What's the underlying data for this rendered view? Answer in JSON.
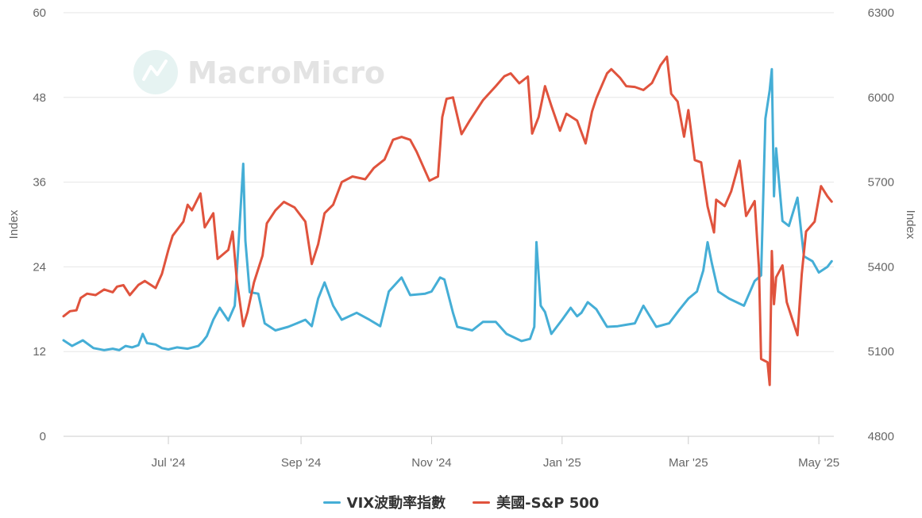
{
  "watermark": "MacroMicro",
  "colors": {
    "vix": "#45aed6",
    "sp500": "#e0533d",
    "grid": "#e6e6e6",
    "text": "#666666"
  },
  "chart_data": {
    "type": "line",
    "left_axis": {
      "label": "Index",
      "ticks": [
        "0",
        "12",
        "24",
        "36",
        "48",
        "60"
      ],
      "ylim": [
        0,
        60
      ]
    },
    "right_axis": {
      "label": "Index",
      "ticks": [
        "4800",
        "5100",
        "5400",
        "5700",
        "6000",
        "6300"
      ],
      "ylim": [
        4800,
        6300
      ]
    },
    "x_ticks": [
      {
        "label": "Jul '24",
        "date": "2024-07-01"
      },
      {
        "label": "Sep '24",
        "date": "2024-09-01"
      },
      {
        "label": "Nov '24",
        "date": "2024-11-01"
      },
      {
        "label": "Jan '25",
        "date": "2025-01-01"
      },
      {
        "label": "Mar '25",
        "date": "2025-03-01"
      },
      {
        "label": "May '25",
        "date": "2025-05-01"
      }
    ],
    "xlim": [
      "2024-05-13",
      "2025-05-08"
    ],
    "grid": true,
    "legend": "bottom",
    "series": [
      {
        "name": "VIX波動率指數",
        "axis": "left",
        "points": [
          [
            "2024-05-13",
            13.6
          ],
          [
            "2024-05-17",
            12.8
          ],
          [
            "2024-05-22",
            13.6
          ],
          [
            "2024-05-27",
            12.5
          ],
          [
            "2024-06-01",
            12.2
          ],
          [
            "2024-06-05",
            12.4
          ],
          [
            "2024-06-08",
            12.2
          ],
          [
            "2024-06-11",
            12.8
          ],
          [
            "2024-06-14",
            12.6
          ],
          [
            "2024-06-17",
            12.9
          ],
          [
            "2024-06-19",
            14.5
          ],
          [
            "2024-06-21",
            13.2
          ],
          [
            "2024-06-25",
            13.0
          ],
          [
            "2024-06-28",
            12.5
          ],
          [
            "2024-07-01",
            12.3
          ],
          [
            "2024-07-05",
            12.6
          ],
          [
            "2024-07-10",
            12.4
          ],
          [
            "2024-07-15",
            12.8
          ],
          [
            "2024-07-17",
            13.4
          ],
          [
            "2024-07-19",
            14.2
          ],
          [
            "2024-07-22",
            16.5
          ],
          [
            "2024-07-25",
            18.2
          ],
          [
            "2024-07-29",
            16.4
          ],
          [
            "2024-08-01",
            18.5
          ],
          [
            "2024-08-02",
            23.4
          ],
          [
            "2024-08-05",
            38.6
          ],
          [
            "2024-08-06",
            27.7
          ],
          [
            "2024-08-08",
            20.4
          ],
          [
            "2024-08-12",
            20.2
          ],
          [
            "2024-08-15",
            16.0
          ],
          [
            "2024-08-20",
            15.0
          ],
          [
            "2024-08-26",
            15.5
          ],
          [
            "2024-08-30",
            16.0
          ],
          [
            "2024-09-03",
            16.5
          ],
          [
            "2024-09-06",
            15.6
          ],
          [
            "2024-09-09",
            19.5
          ],
          [
            "2024-09-12",
            21.8
          ],
          [
            "2024-09-16",
            18.5
          ],
          [
            "2024-09-20",
            16.5
          ],
          [
            "2024-09-27",
            17.5
          ],
          [
            "2024-10-03",
            16.5
          ],
          [
            "2024-10-08",
            15.6
          ],
          [
            "2024-10-12",
            20.5
          ],
          [
            "2024-10-18",
            22.5
          ],
          [
            "2024-10-22",
            20.0
          ],
          [
            "2024-10-29",
            20.2
          ],
          [
            "2024-11-01",
            20.5
          ],
          [
            "2024-11-05",
            22.5
          ],
          [
            "2024-11-07",
            22.2
          ],
          [
            "2024-11-11",
            17.5
          ],
          [
            "2024-11-13",
            15.5
          ],
          [
            "2024-11-20",
            15.0
          ],
          [
            "2024-11-25",
            16.2
          ],
          [
            "2024-12-01",
            16.2
          ],
          [
            "2024-12-06",
            14.5
          ],
          [
            "2024-12-13",
            13.5
          ],
          [
            "2024-12-17",
            13.8
          ],
          [
            "2024-12-19",
            15.5
          ],
          [
            "2024-12-20",
            27.5
          ],
          [
            "2024-12-22",
            18.5
          ],
          [
            "2024-12-24",
            17.6
          ],
          [
            "2024-12-27",
            14.5
          ],
          [
            "2025-01-01",
            16.5
          ],
          [
            "2025-01-05",
            18.2
          ],
          [
            "2025-01-08",
            17.0
          ],
          [
            "2025-01-10",
            17.5
          ],
          [
            "2025-01-13",
            19.0
          ],
          [
            "2025-01-17",
            18.0
          ],
          [
            "2025-01-22",
            15.5
          ],
          [
            "2025-01-27",
            15.6
          ],
          [
            "2025-01-31",
            15.8
          ],
          [
            "2025-02-04",
            16.0
          ],
          [
            "2025-02-08",
            18.5
          ],
          [
            "2025-02-14",
            15.5
          ],
          [
            "2025-02-20",
            16.0
          ],
          [
            "2025-02-25",
            18.0
          ],
          [
            "2025-03-01",
            19.5
          ],
          [
            "2025-03-05",
            20.5
          ],
          [
            "2025-03-08",
            23.5
          ],
          [
            "2025-03-10",
            27.5
          ],
          [
            "2025-03-12",
            24.5
          ],
          [
            "2025-03-15",
            20.5
          ],
          [
            "2025-03-20",
            19.5
          ],
          [
            "2025-03-27",
            18.5
          ],
          [
            "2025-04-01",
            22.0
          ],
          [
            "2025-04-04",
            22.8
          ],
          [
            "2025-04-06",
            45.0
          ],
          [
            "2025-04-08",
            49.0
          ],
          [
            "2025-04-09",
            52.0
          ],
          [
            "2025-04-10",
            34.0
          ],
          [
            "2025-04-11",
            40.8
          ],
          [
            "2025-04-14",
            30.5
          ],
          [
            "2025-04-17",
            29.8
          ],
          [
            "2025-04-21",
            33.8
          ],
          [
            "2025-04-24",
            25.5
          ],
          [
            "2025-04-28",
            24.8
          ],
          [
            "2025-05-01",
            23.2
          ],
          [
            "2025-05-05",
            24.0
          ],
          [
            "2025-05-07",
            24.8
          ]
        ]
      },
      {
        "name": "美國-S&P 500",
        "axis": "right",
        "points": [
          [
            "2024-05-13",
            5225
          ],
          [
            "2024-05-16",
            5243
          ],
          [
            "2024-05-19",
            5246
          ],
          [
            "2024-05-21",
            5290
          ],
          [
            "2024-05-24",
            5305
          ],
          [
            "2024-05-28",
            5300
          ],
          [
            "2024-06-01",
            5320
          ],
          [
            "2024-06-05",
            5310
          ],
          [
            "2024-06-07",
            5330
          ],
          [
            "2024-06-10",
            5335
          ],
          [
            "2024-06-13",
            5300
          ],
          [
            "2024-06-17",
            5336
          ],
          [
            "2024-06-20",
            5350
          ],
          [
            "2024-06-25",
            5325
          ],
          [
            "2024-06-28",
            5375
          ],
          [
            "2024-07-01",
            5460
          ],
          [
            "2024-07-03",
            5510
          ],
          [
            "2024-07-08",
            5560
          ],
          [
            "2024-07-10",
            5620
          ],
          [
            "2024-07-12",
            5600
          ],
          [
            "2024-07-16",
            5660
          ],
          [
            "2024-07-18",
            5540
          ],
          [
            "2024-07-22",
            5590
          ],
          [
            "2024-07-24",
            5428
          ],
          [
            "2024-07-29",
            5460
          ],
          [
            "2024-07-31",
            5525
          ],
          [
            "2024-08-02",
            5350
          ],
          [
            "2024-08-05",
            5190
          ],
          [
            "2024-08-07",
            5240
          ],
          [
            "2024-08-10",
            5345
          ],
          [
            "2024-08-14",
            5440
          ],
          [
            "2024-08-16",
            5554
          ],
          [
            "2024-08-20",
            5600
          ],
          [
            "2024-08-24",
            5630
          ],
          [
            "2024-08-29",
            5610
          ],
          [
            "2024-09-03",
            5560
          ],
          [
            "2024-09-06",
            5410
          ],
          [
            "2024-09-09",
            5480
          ],
          [
            "2024-09-12",
            5590
          ],
          [
            "2024-09-16",
            5620
          ],
          [
            "2024-09-20",
            5700
          ],
          [
            "2024-09-25",
            5720
          ],
          [
            "2024-10-01",
            5710
          ],
          [
            "2024-10-05",
            5750
          ],
          [
            "2024-10-10",
            5780
          ],
          [
            "2024-10-14",
            5850
          ],
          [
            "2024-10-18",
            5860
          ],
          [
            "2024-10-22",
            5850
          ],
          [
            "2024-10-25",
            5808
          ],
          [
            "2024-10-31",
            5705
          ],
          [
            "2024-11-04",
            5720
          ],
          [
            "2024-11-06",
            5930
          ],
          [
            "2024-11-08",
            5995
          ],
          [
            "2024-11-11",
            6000
          ],
          [
            "2024-11-15",
            5870
          ],
          [
            "2024-11-19",
            5920
          ],
          [
            "2024-11-25",
            5990
          ],
          [
            "2024-12-01",
            6040
          ],
          [
            "2024-12-05",
            6075
          ],
          [
            "2024-12-08",
            6085
          ],
          [
            "2024-12-12",
            6050
          ],
          [
            "2024-12-16",
            6074
          ],
          [
            "2024-12-18",
            5872
          ],
          [
            "2024-12-21",
            5930
          ],
          [
            "2024-12-24",
            6040
          ],
          [
            "2024-12-27",
            5970
          ],
          [
            "2024-12-31",
            5882
          ],
          [
            "2025-01-03",
            5942
          ],
          [
            "2025-01-08",
            5918
          ],
          [
            "2025-01-12",
            5837
          ],
          [
            "2025-01-15",
            5950
          ],
          [
            "2025-01-17",
            5997
          ],
          [
            "2025-01-22",
            6085
          ],
          [
            "2025-01-24",
            6100
          ],
          [
            "2025-01-28",
            6070
          ],
          [
            "2025-01-31",
            6040
          ],
          [
            "2025-02-04",
            6037
          ],
          [
            "2025-02-08",
            6026
          ],
          [
            "2025-02-12",
            6051
          ],
          [
            "2025-02-16",
            6114
          ],
          [
            "2025-02-19",
            6144
          ],
          [
            "2025-02-21",
            6013
          ],
          [
            "2025-02-24",
            5985
          ],
          [
            "2025-02-27",
            5861
          ],
          [
            "2025-03-01",
            5955
          ],
          [
            "2025-03-04",
            5778
          ],
          [
            "2025-03-07",
            5770
          ],
          [
            "2025-03-10",
            5614
          ],
          [
            "2025-03-13",
            5522
          ],
          [
            "2025-03-14",
            5638
          ],
          [
            "2025-03-18",
            5615
          ],
          [
            "2025-03-21",
            5667
          ],
          [
            "2025-03-25",
            5776
          ],
          [
            "2025-03-28",
            5580
          ],
          [
            "2025-04-01",
            5633
          ],
          [
            "2025-04-03",
            5396
          ],
          [
            "2025-04-04",
            5074
          ],
          [
            "2025-04-07",
            5062
          ],
          [
            "2025-04-08",
            4982
          ],
          [
            "2025-04-09",
            5456
          ],
          [
            "2025-04-10",
            5268
          ],
          [
            "2025-04-11",
            5363
          ],
          [
            "2025-04-14",
            5405
          ],
          [
            "2025-04-16",
            5275
          ],
          [
            "2025-04-21",
            5158
          ],
          [
            "2025-04-23",
            5375
          ],
          [
            "2025-04-25",
            5525
          ],
          [
            "2025-04-29",
            5560
          ],
          [
            "2025-05-02",
            5686
          ],
          [
            "2025-05-05",
            5650
          ],
          [
            "2025-05-07",
            5631
          ]
        ]
      }
    ]
  }
}
